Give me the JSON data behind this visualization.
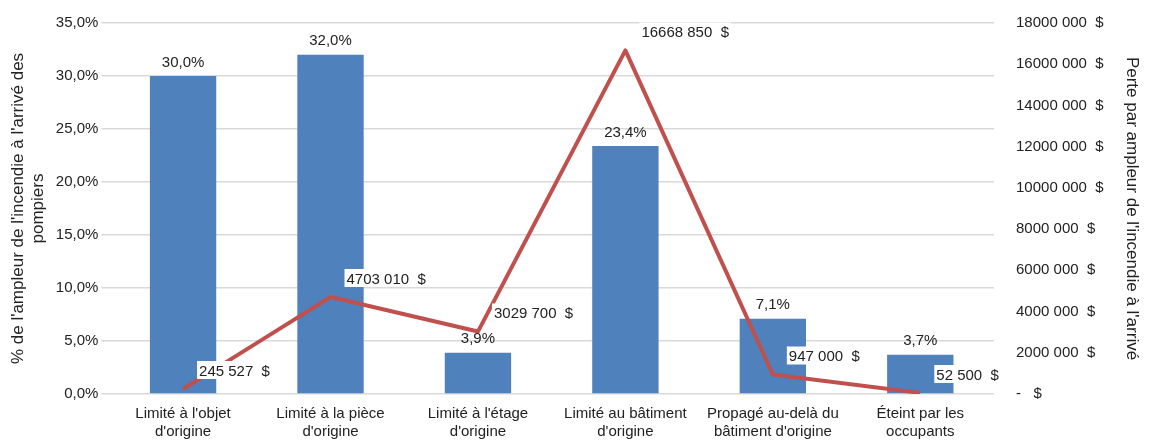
{
  "chart_data": {
    "type": "bar",
    "categories": [
      "Limité à l'objet d'origine",
      "Limité à la pièce d'origine",
      "Limité à l'étage d'origine",
      "Limité au bâtiment d'origine",
      "Propagé au-delà du bâtiment d'origine",
      "Éteint par les occupants"
    ],
    "ylabel": "% de l'ampleur de l'incendie à l'arrivé des pompiers",
    "y2label": "Perte par ampleur de l'incendie à l'arrivé",
    "ylim": [
      0,
      35
    ],
    "yticks": [
      {
        "value": 0,
        "label": "0,0%"
      },
      {
        "value": 5,
        "label": "5,0%"
      },
      {
        "value": 10,
        "label": "10,0%"
      },
      {
        "value": 15,
        "label": "15,0%"
      },
      {
        "value": 20,
        "label": "20,0%"
      },
      {
        "value": 25,
        "label": "25,0%"
      },
      {
        "value": 30,
        "label": "30,0%"
      },
      {
        "value": 35,
        "label": "35,0%"
      }
    ],
    "y2lim": [
      0,
      18000000
    ],
    "y2ticks": [
      {
        "value": 0,
        "label": "-   $"
      },
      {
        "value": 2000000,
        "label": "2000 000  $"
      },
      {
        "value": 4000000,
        "label": "4000 000  $"
      },
      {
        "value": 6000000,
        "label": "6000 000  $"
      },
      {
        "value": 8000000,
        "label": "8000 000  $"
      },
      {
        "value": 10000000,
        "label": "10000 000  $"
      },
      {
        "value": 12000000,
        "label": "12000 000  $"
      },
      {
        "value": 14000000,
        "label": "14000 000  $"
      },
      {
        "value": 16000000,
        "label": "16000 000  $"
      },
      {
        "value": 18000000,
        "label": "18000 000  $"
      }
    ],
    "grid": "y",
    "legend": false,
    "series": [
      {
        "color": "#4f81bd",
        "values": [
          30.0,
          32.0,
          3.9,
          23.4,
          7.1,
          3.7
        ],
        "value_labels": [
          "30,0%",
          "32,0%",
          "3,9%",
          "23,4%",
          "7,1%",
          "3,7%"
        ]
      },
      {
        "type": "line",
        "axis": "y2",
        "color": "#c0504d",
        "marker": "none",
        "line_style": "solid",
        "values": [
          245527,
          4703010,
          3029700,
          16668850,
          947000,
          52500
        ],
        "value_labels": [
          "245 527  $",
          "4703 010  $",
          "3029 700  $",
          "16668 850  $",
          "947 000  $",
          "52 500  $"
        ]
      }
    ]
  }
}
